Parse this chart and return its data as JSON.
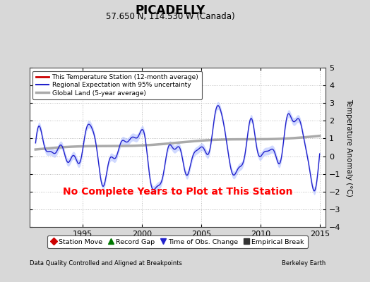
{
  "title": "PICADELLY",
  "subtitle": "57.650 N, 114.530 W (Canada)",
  "ylabel": "Temperature Anomaly (°C)",
  "xlabel_left": "Data Quality Controlled and Aligned at Breakpoints",
  "xlabel_right": "Berkeley Earth",
  "no_data_text": "No Complete Years to Plot at This Station",
  "ylim": [
    -4,
    5
  ],
  "xlim": [
    1990.5,
    2015.5
  ],
  "xticks": [
    1995,
    2000,
    2005,
    2010,
    2015
  ],
  "yticks": [
    -4,
    -3,
    -2,
    -1,
    0,
    1,
    2,
    3,
    4,
    5
  ],
  "bg_color": "#d8d8d8",
  "plot_bg_color": "#ffffff",
  "grid_color": "#bbbbbb",
  "regional_color": "#2222cc",
  "regional_fill_color": "#aabbff",
  "global_color": "#aaaaaa",
  "station_color": "#cc0000",
  "legend_items": [
    {
      "label": "This Temperature Station (12-month average)",
      "color": "#cc0000",
      "lw": 2
    },
    {
      "label": "Regional Expectation with 95% uncertainty",
      "color": "#2222cc",
      "lw": 1.5
    },
    {
      "label": "Global Land (5-year average)",
      "color": "#aaaaaa",
      "lw": 2.5
    }
  ],
  "bottom_legend": [
    {
      "label": "Station Move",
      "marker": "D",
      "color": "#cc0000"
    },
    {
      "label": "Record Gap",
      "marker": "^",
      "color": "#007700"
    },
    {
      "label": "Time of Obs. Change",
      "marker": "v",
      "color": "#2222cc"
    },
    {
      "label": "Empirical Break",
      "marker": "s",
      "color": "#333333"
    }
  ]
}
